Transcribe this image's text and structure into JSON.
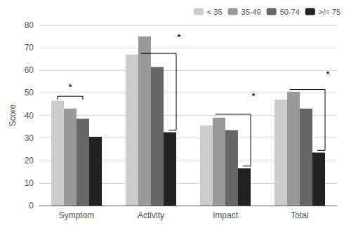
{
  "chart_data": {
    "type": "bar",
    "categories": [
      "Symptom",
      "Activity",
      "Impact",
      "Total"
    ],
    "series": [
      {
        "name": "< 35",
        "color": "#cccccc",
        "values": [
          46.5,
          67.0,
          35.5,
          47.0
        ]
      },
      {
        "name": "35-49",
        "color": "#999999",
        "values": [
          43.0,
          75.0,
          39.0,
          50.5
        ]
      },
      {
        "name": "50-74",
        "color": "#666666",
        "values": [
          38.5,
          61.5,
          33.5,
          43.0
        ]
      },
      {
        "name": ">/= 75",
        "color": "#222222",
        "values": [
          30.5,
          32.5,
          16.5,
          23.5
        ]
      }
    ],
    "ylabel": "Score",
    "ylim": [
      0,
      80
    ],
    "yticks": [
      0,
      10,
      20,
      30,
      40,
      50,
      60,
      70,
      80
    ],
    "grid": true,
    "legend": "upper right",
    "brackets": [
      {
        "category": "Symptom",
        "style": "flat",
        "from": "< 35",
        "to": "50-74",
        "y": 48.5,
        "tick_down": 1.5
      },
      {
        "category": "Activity",
        "style": "right",
        "from": "35-49",
        "to": ">/= 75",
        "y_top": 67.5,
        "y_bottom": 33.5
      },
      {
        "category": "Impact",
        "style": "right",
        "from": "35-49",
        "to": ">/= 75",
        "y_top": 40.5,
        "y_bottom": 17.5
      },
      {
        "category": "Total",
        "style": "right",
        "from": "35-49",
        "to": ">/= 75",
        "y_top": 51.5,
        "y_bottom": 24.5
      }
    ],
    "annotations": [
      {
        "text": "*",
        "category": "Symptom",
        "y": 50.5
      },
      {
        "text": "*",
        "category": "Activity",
        "y": 72.5
      },
      {
        "text": "*",
        "category": "Impact",
        "y": 46.5
      },
      {
        "text": "*",
        "category": "Total",
        "y": 56.0
      }
    ]
  }
}
